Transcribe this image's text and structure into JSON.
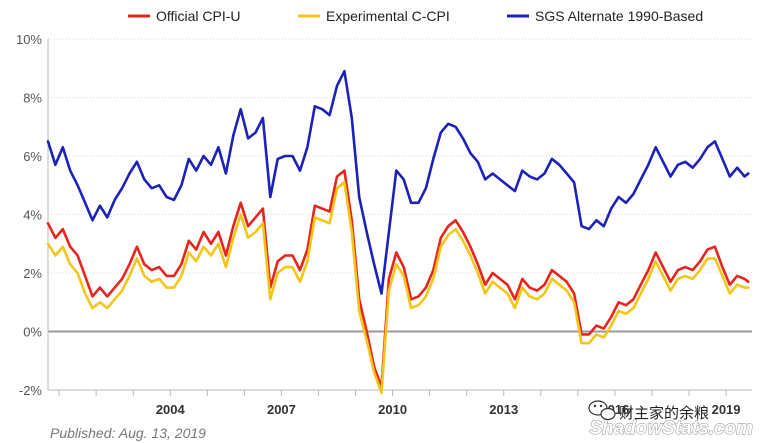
{
  "chart_data": {
    "type": "line",
    "title": "",
    "xlabel": "",
    "ylabel": "",
    "ylim": [
      -2,
      10
    ],
    "y_ticks": [
      "-2%",
      "0%",
      "2%",
      "4%",
      "6%",
      "8%",
      "10%"
    ],
    "x_ticks": [
      "2004",
      "2007",
      "2010",
      "2013",
      "2016",
      "2019"
    ],
    "x_range": [
      2000.7,
      2019.7
    ],
    "grid": "horizontal",
    "legend_position": "top",
    "zero_line": true,
    "series": [
      {
        "name": "Official CPI-U",
        "color": "#e8241c",
        "x": [
          2000.7,
          2000.9,
          2001.1,
          2001.3,
          2001.5,
          2001.7,
          2001.9,
          2002.1,
          2002.3,
          2002.5,
          2002.7,
          2002.9,
          2003.1,
          2003.3,
          2003.5,
          2003.7,
          2003.9,
          2004.1,
          2004.3,
          2004.5,
          2004.7,
          2004.9,
          2005.1,
          2005.3,
          2005.5,
          2005.7,
          2005.9,
          2006.1,
          2006.3,
          2006.5,
          2006.7,
          2006.9,
          2007.1,
          2007.3,
          2007.5,
          2007.7,
          2007.9,
          2008.1,
          2008.3,
          2008.5,
          2008.7,
          2008.9,
          2009.1,
          2009.3,
          2009.5,
          2009.7,
          2009.9,
          2010.1,
          2010.3,
          2010.5,
          2010.7,
          2010.9,
          2011.1,
          2011.3,
          2011.5,
          2011.7,
          2011.9,
          2012.1,
          2012.3,
          2012.5,
          2012.7,
          2012.9,
          2013.1,
          2013.3,
          2013.5,
          2013.7,
          2013.9,
          2014.1,
          2014.3,
          2014.5,
          2014.7,
          2014.9,
          2015.1,
          2015.3,
          2015.5,
          2015.7,
          2015.9,
          2016.1,
          2016.3,
          2016.5,
          2016.7,
          2016.9,
          2017.1,
          2017.3,
          2017.5,
          2017.7,
          2017.9,
          2018.1,
          2018.3,
          2018.5,
          2018.7,
          2018.9,
          2019.1,
          2019.3,
          2019.5,
          2019.6
        ],
        "values": [
          3.7,
          3.2,
          3.5,
          2.9,
          2.6,
          1.9,
          1.2,
          1.5,
          1.2,
          1.5,
          1.8,
          2.3,
          2.9,
          2.3,
          2.1,
          2.2,
          1.9,
          1.9,
          2.3,
          3.1,
          2.8,
          3.4,
          3.0,
          3.4,
          2.6,
          3.6,
          4.4,
          3.6,
          3.9,
          4.2,
          1.5,
          2.4,
          2.6,
          2.6,
          2.1,
          2.8,
          4.3,
          4.2,
          4.1,
          5.3,
          5.5,
          3.8,
          1.1,
          0.0,
          -1.2,
          -1.9,
          1.8,
          2.7,
          2.2,
          1.1,
          1.2,
          1.5,
          2.1,
          3.2,
          3.6,
          3.8,
          3.4,
          2.9,
          2.3,
          1.6,
          2.0,
          1.8,
          1.6,
          1.1,
          1.8,
          1.5,
          1.4,
          1.6,
          2.1,
          1.9,
          1.7,
          1.3,
          -0.1,
          -0.1,
          0.2,
          0.1,
          0.5,
          1.0,
          0.9,
          1.1,
          1.6,
          2.1,
          2.7,
          2.2,
          1.7,
          2.1,
          2.2,
          2.1,
          2.4,
          2.8,
          2.9,
          2.2,
          1.6,
          1.9,
          1.8,
          1.7
        ]
      },
      {
        "name": "Experimental C-CPI",
        "color": "#f5c518",
        "x": [
          2000.7,
          2000.9,
          2001.1,
          2001.3,
          2001.5,
          2001.7,
          2001.9,
          2002.1,
          2002.3,
          2002.5,
          2002.7,
          2002.9,
          2003.1,
          2003.3,
          2003.5,
          2003.7,
          2003.9,
          2004.1,
          2004.3,
          2004.5,
          2004.7,
          2004.9,
          2005.1,
          2005.3,
          2005.5,
          2005.7,
          2005.9,
          2006.1,
          2006.3,
          2006.5,
          2006.7,
          2006.9,
          2007.1,
          2007.3,
          2007.5,
          2007.7,
          2007.9,
          2008.1,
          2008.3,
          2008.5,
          2008.7,
          2008.9,
          2009.1,
          2009.3,
          2009.5,
          2009.7,
          2009.9,
          2010.1,
          2010.3,
          2010.5,
          2010.7,
          2010.9,
          2011.1,
          2011.3,
          2011.5,
          2011.7,
          2011.9,
          2012.1,
          2012.3,
          2012.5,
          2012.7,
          2012.9,
          2013.1,
          2013.3,
          2013.5,
          2013.7,
          2013.9,
          2014.1,
          2014.3,
          2014.5,
          2014.7,
          2014.9,
          2015.1,
          2015.3,
          2015.5,
          2015.7,
          2015.9,
          2016.1,
          2016.3,
          2016.5,
          2016.7,
          2016.9,
          2017.1,
          2017.3,
          2017.5,
          2017.7,
          2017.9,
          2018.1,
          2018.3,
          2018.5,
          2018.7,
          2018.9,
          2019.1,
          2019.3,
          2019.5,
          2019.6
        ],
        "values": [
          3.0,
          2.6,
          2.9,
          2.3,
          2.0,
          1.3,
          0.8,
          1.0,
          0.8,
          1.1,
          1.4,
          1.9,
          2.5,
          1.9,
          1.7,
          1.8,
          1.5,
          1.5,
          1.9,
          2.7,
          2.4,
          2.9,
          2.6,
          3.0,
          2.2,
          3.2,
          4.0,
          3.2,
          3.4,
          3.7,
          1.1,
          2.0,
          2.2,
          2.2,
          1.7,
          2.4,
          3.9,
          3.8,
          3.7,
          4.9,
          5.1,
          3.4,
          0.7,
          -0.3,
          -1.4,
          -2.1,
          1.4,
          2.3,
          1.9,
          0.8,
          0.9,
          1.2,
          1.8,
          2.9,
          3.3,
          3.5,
          3.1,
          2.6,
          2.0,
          1.3,
          1.7,
          1.5,
          1.3,
          0.8,
          1.5,
          1.2,
          1.1,
          1.3,
          1.8,
          1.6,
          1.4,
          1.0,
          -0.4,
          -0.4,
          -0.1,
          -0.2,
          0.2,
          0.7,
          0.6,
          0.8,
          1.3,
          1.8,
          2.4,
          1.9,
          1.4,
          1.8,
          1.9,
          1.8,
          2.1,
          2.5,
          2.5,
          1.9,
          1.3,
          1.6,
          1.5,
          1.5
        ]
      },
      {
        "name": "SGS  Alternate 1990-Based",
        "color": "#1c22b8",
        "x": [
          2000.7,
          2000.9,
          2001.1,
          2001.3,
          2001.5,
          2001.7,
          2001.9,
          2002.1,
          2002.3,
          2002.5,
          2002.7,
          2002.9,
          2003.1,
          2003.3,
          2003.5,
          2003.7,
          2003.9,
          2004.1,
          2004.3,
          2004.5,
          2004.7,
          2004.9,
          2005.1,
          2005.3,
          2005.5,
          2005.7,
          2005.9,
          2006.1,
          2006.3,
          2006.5,
          2006.7,
          2006.9,
          2007.1,
          2007.3,
          2007.5,
          2007.7,
          2007.9,
          2008.1,
          2008.3,
          2008.5,
          2008.7,
          2008.9,
          2009.1,
          2009.3,
          2009.5,
          2009.7,
          2009.9,
          2010.1,
          2010.3,
          2010.5,
          2010.7,
          2010.9,
          2011.1,
          2011.3,
          2011.5,
          2011.7,
          2011.9,
          2012.1,
          2012.3,
          2012.5,
          2012.7,
          2012.9,
          2013.1,
          2013.3,
          2013.5,
          2013.7,
          2013.9,
          2014.1,
          2014.3,
          2014.5,
          2014.7,
          2014.9,
          2015.1,
          2015.3,
          2015.5,
          2015.7,
          2015.9,
          2016.1,
          2016.3,
          2016.5,
          2016.7,
          2016.9,
          2017.1,
          2017.3,
          2017.5,
          2017.7,
          2017.9,
          2018.1,
          2018.3,
          2018.5,
          2018.7,
          2018.9,
          2019.1,
          2019.3,
          2019.5,
          2019.6
        ],
        "values": [
          6.5,
          5.7,
          6.3,
          5.5,
          5.0,
          4.4,
          3.8,
          4.3,
          3.9,
          4.5,
          4.9,
          5.4,
          5.8,
          5.2,
          4.9,
          5.0,
          4.6,
          4.5,
          5.0,
          5.9,
          5.5,
          6.0,
          5.7,
          6.3,
          5.4,
          6.7,
          7.6,
          6.6,
          6.8,
          7.3,
          4.6,
          5.9,
          6.0,
          6.0,
          5.5,
          6.3,
          7.7,
          7.6,
          7.4,
          8.4,
          8.9,
          7.3,
          4.6,
          3.4,
          2.3,
          1.3,
          3.4,
          5.5,
          5.2,
          4.4,
          4.4,
          4.9,
          5.9,
          6.8,
          7.1,
          7.0,
          6.6,
          6.1,
          5.8,
          5.2,
          5.4,
          5.2,
          5.0,
          4.8,
          5.5,
          5.3,
          5.2,
          5.4,
          5.9,
          5.7,
          5.4,
          5.1,
          3.6,
          3.5,
          3.8,
          3.6,
          4.2,
          4.6,
          4.4,
          4.7,
          5.2,
          5.7,
          6.3,
          5.8,
          5.3,
          5.7,
          5.8,
          5.6,
          5.9,
          6.3,
          6.5,
          5.9,
          5.3,
          5.6,
          5.3,
          5.4
        ]
      }
    ]
  },
  "footer": {
    "published": "Published: Aug. 13, 2019",
    "brand": "ShadowStats.com"
  },
  "watermark": {
    "text": "财主家的余粮"
  }
}
